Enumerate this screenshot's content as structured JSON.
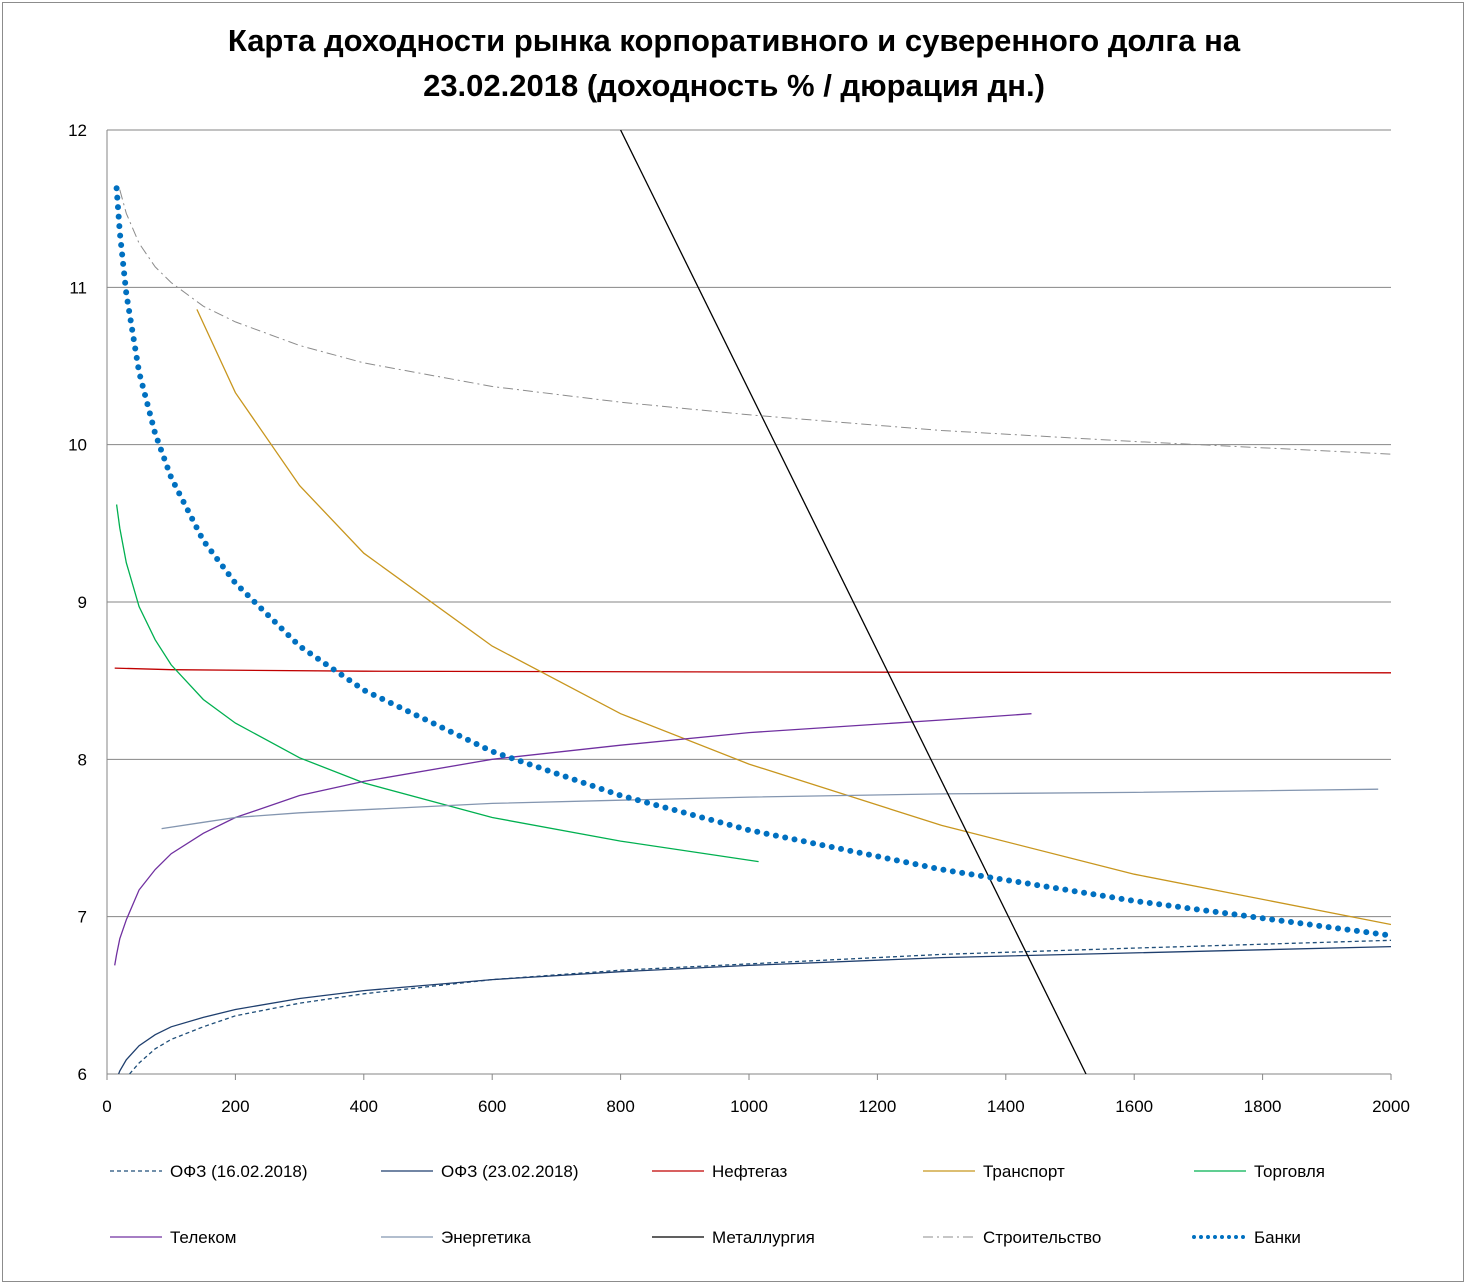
{
  "chart_data": {
    "type": "line",
    "title": "Карта доходности рынка корпоративного и суверенного долга на 23.02.2018 (доходность % / дюрация дн.)",
    "title_lines": [
      "Карта доходности рынка корпоративного и суверенного долга на",
      "23.02.2018 (доходность % / дюрация дн.)"
    ],
    "xlabel": "",
    "ylabel": "",
    "xlim": [
      0,
      2000
    ],
    "ylim": [
      6,
      12
    ],
    "xticks": [
      0,
      200,
      400,
      600,
      800,
      1000,
      1200,
      1400,
      1600,
      1800,
      2000
    ],
    "yticks": [
      6,
      7,
      8,
      9,
      10,
      11,
      12
    ],
    "grid": "horizontal",
    "legend_position": "bottom",
    "series": [
      {
        "name": "ОФЗ (16.02.2018)",
        "color": "#1f4e79",
        "style": "dashed",
        "points": [
          [
            35,
            6.0
          ],
          [
            50,
            6.07
          ],
          [
            75,
            6.16
          ],
          [
            100,
            6.22
          ],
          [
            150,
            6.3
          ],
          [
            200,
            6.37
          ],
          [
            300,
            6.45
          ],
          [
            400,
            6.51
          ],
          [
            600,
            6.6
          ],
          [
            800,
            6.66
          ],
          [
            1000,
            6.7
          ],
          [
            1300,
            6.76
          ],
          [
            1600,
            6.8
          ],
          [
            2000,
            6.85
          ]
        ]
      },
      {
        "name": "ОФЗ (23.02.2018)",
        "color": "#1f3f6e",
        "style": "solid",
        "points": [
          [
            18,
            6.0
          ],
          [
            20,
            6.02
          ],
          [
            30,
            6.09
          ],
          [
            50,
            6.18
          ],
          [
            75,
            6.25
          ],
          [
            100,
            6.3
          ],
          [
            150,
            6.36
          ],
          [
            200,
            6.41
          ],
          [
            300,
            6.48
          ],
          [
            400,
            6.53
          ],
          [
            600,
            6.6
          ],
          [
            800,
            6.65
          ],
          [
            1000,
            6.69
          ],
          [
            1300,
            6.74
          ],
          [
            1600,
            6.77
          ],
          [
            2000,
            6.81
          ]
        ]
      },
      {
        "name": "Нефтегаз",
        "color": "#c00000",
        "style": "solid",
        "points": [
          [
            12,
            8.58
          ],
          [
            100,
            8.57
          ],
          [
            400,
            8.56
          ],
          [
            1000,
            8.555
          ],
          [
            2000,
            8.55
          ]
        ]
      },
      {
        "name": "Транспорт",
        "color": "#c8961e",
        "style": "solid",
        "points": [
          [
            140,
            10.86
          ],
          [
            200,
            10.33
          ],
          [
            300,
            9.74
          ],
          [
            400,
            9.31
          ],
          [
            600,
            8.72
          ],
          [
            800,
            8.29
          ],
          [
            1000,
            7.97
          ],
          [
            1300,
            7.58
          ],
          [
            1600,
            7.27
          ],
          [
            2000,
            6.95
          ]
        ]
      },
      {
        "name": "Торговля",
        "color": "#00b050",
        "style": "solid",
        "points": [
          [
            15,
            9.62
          ],
          [
            20,
            9.47
          ],
          [
            30,
            9.25
          ],
          [
            50,
            8.97
          ],
          [
            75,
            8.76
          ],
          [
            100,
            8.6
          ],
          [
            150,
            8.38
          ],
          [
            200,
            8.23
          ],
          [
            300,
            8.01
          ],
          [
            400,
            7.85
          ],
          [
            600,
            7.63
          ],
          [
            800,
            7.48
          ],
          [
            1015,
            7.35
          ]
        ]
      },
      {
        "name": "Телеком",
        "color": "#7030a0",
        "style": "solid",
        "points": [
          [
            12,
            6.69
          ],
          [
            15,
            6.76
          ],
          [
            20,
            6.86
          ],
          [
            30,
            6.98
          ],
          [
            50,
            7.17
          ],
          [
            75,
            7.3
          ],
          [
            100,
            7.4
          ],
          [
            150,
            7.53
          ],
          [
            200,
            7.63
          ],
          [
            300,
            7.77
          ],
          [
            400,
            7.86
          ],
          [
            600,
            8.0
          ],
          [
            800,
            8.09
          ],
          [
            1000,
            8.17
          ],
          [
            1300,
            8.25
          ],
          [
            1440,
            8.29
          ]
        ]
      },
      {
        "name": "Энергетика",
        "color": "#8496b0",
        "style": "solid",
        "points": [
          [
            85,
            7.56
          ],
          [
            150,
            7.6
          ],
          [
            200,
            7.63
          ],
          [
            300,
            7.66
          ],
          [
            400,
            7.68
          ],
          [
            600,
            7.72
          ],
          [
            800,
            7.74
          ],
          [
            1000,
            7.76
          ],
          [
            1300,
            7.78
          ],
          [
            1600,
            7.79
          ],
          [
            1980,
            7.81
          ]
        ]
      },
      {
        "name": "Металлургия",
        "color": "#000000",
        "style": "solid",
        "points": [
          [
            800,
            12.0
          ],
          [
            1525,
            6.0
          ]
        ]
      },
      {
        "name": "Строительство",
        "color": "#8c8c8c",
        "style": "dashdot",
        "points": [
          [
            20,
            11.62
          ],
          [
            30,
            11.47
          ],
          [
            50,
            11.28
          ],
          [
            75,
            11.13
          ],
          [
            100,
            11.03
          ],
          [
            150,
            10.88
          ],
          [
            200,
            10.78
          ],
          [
            300,
            10.63
          ],
          [
            400,
            10.52
          ],
          [
            600,
            10.37
          ],
          [
            800,
            10.27
          ],
          [
            1000,
            10.19
          ],
          [
            1300,
            10.09
          ],
          [
            1600,
            10.02
          ],
          [
            2000,
            9.94
          ]
        ]
      },
      {
        "name": "Банки",
        "color": "#0070c0",
        "style": "dotted",
        "points": [
          [
            15,
            11.63
          ],
          [
            20,
            11.35
          ],
          [
            30,
            10.96
          ],
          [
            50,
            10.46
          ],
          [
            75,
            10.07
          ],
          [
            100,
            9.79
          ],
          [
            150,
            9.39
          ],
          [
            200,
            9.12
          ],
          [
            300,
            8.72
          ],
          [
            400,
            8.44
          ],
          [
            600,
            8.05
          ],
          [
            800,
            7.77
          ],
          [
            1000,
            7.55
          ],
          [
            1300,
            7.3
          ],
          [
            1600,
            7.1
          ],
          [
            2000,
            6.88
          ]
        ]
      }
    ]
  }
}
